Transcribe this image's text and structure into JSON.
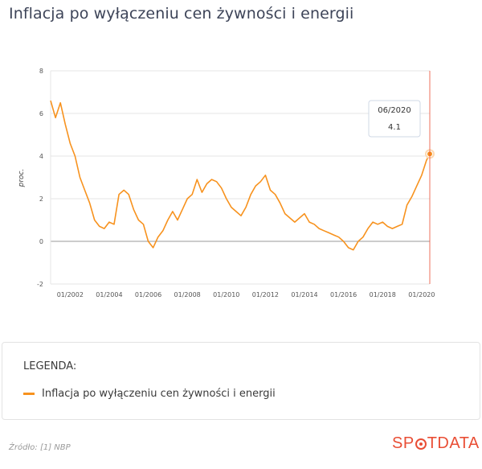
{
  "title": "Inflacja po wyłączeniu cen żywności i energii",
  "legend": {
    "title": "LEGENDA:",
    "items": [
      {
        "label": "Inflacja po wyłączeniu cen żywności i energii",
        "color": "#f7921e"
      }
    ]
  },
  "source": "Źródło: [1] NBP",
  "brand": {
    "left": "SP",
    "right": "TDATA",
    "color": "#e94e35"
  },
  "tooltip": {
    "date": "06/2020",
    "value": "4.1"
  },
  "chart_data": {
    "type": "line",
    "title": "Inflacja po wyłączeniu cen żywności i energii",
    "xlabel": "",
    "ylabel": "proc.",
    "ylim": [
      -2,
      8
    ],
    "yticks": [
      -2,
      0,
      2,
      4,
      6,
      8
    ],
    "xticks": [
      "01/2002",
      "01/2004",
      "01/2006",
      "01/2008",
      "01/2010",
      "01/2012",
      "01/2014",
      "01/2016",
      "01/2018",
      "01/2020"
    ],
    "grid": true,
    "legend_position": "bottom",
    "series": [
      {
        "name": "Inflacja po wyłączeniu cen żywności i energii",
        "color": "#f7921e",
        "x": [
          "01/2001",
          "04/2001",
          "07/2001",
          "10/2001",
          "01/2002",
          "04/2002",
          "07/2002",
          "10/2002",
          "01/2003",
          "04/2003",
          "07/2003",
          "10/2003",
          "01/2004",
          "04/2004",
          "07/2004",
          "10/2004",
          "01/2005",
          "04/2005",
          "07/2005",
          "10/2005",
          "01/2006",
          "04/2006",
          "07/2006",
          "10/2006",
          "01/2007",
          "04/2007",
          "07/2007",
          "10/2007",
          "01/2008",
          "04/2008",
          "07/2008",
          "10/2008",
          "01/2009",
          "04/2009",
          "07/2009",
          "10/2009",
          "01/2010",
          "04/2010",
          "07/2010",
          "10/2010",
          "01/2011",
          "04/2011",
          "07/2011",
          "10/2011",
          "01/2012",
          "04/2012",
          "07/2012",
          "10/2012",
          "01/2013",
          "04/2013",
          "07/2013",
          "10/2013",
          "01/2014",
          "04/2014",
          "07/2014",
          "10/2014",
          "01/2015",
          "04/2015",
          "07/2015",
          "10/2015",
          "01/2016",
          "04/2016",
          "07/2016",
          "10/2016",
          "01/2017",
          "04/2017",
          "07/2017",
          "10/2017",
          "01/2018",
          "04/2018",
          "07/2018",
          "10/2018",
          "01/2019",
          "04/2019",
          "07/2019",
          "10/2019",
          "01/2020",
          "04/2020",
          "06/2020"
        ],
        "values": [
          6.6,
          5.8,
          6.5,
          5.5,
          4.6,
          4.0,
          3.0,
          2.4,
          1.8,
          1.0,
          0.7,
          0.6,
          0.9,
          0.8,
          2.2,
          2.4,
          2.2,
          1.5,
          1.0,
          0.8,
          0.0,
          -0.3,
          0.2,
          0.5,
          1.0,
          1.4,
          1.0,
          1.5,
          2.0,
          2.2,
          2.9,
          2.3,
          2.7,
          2.9,
          2.8,
          2.5,
          2.0,
          1.6,
          1.4,
          1.2,
          1.6,
          2.2,
          2.6,
          2.8,
          3.1,
          2.4,
          2.2,
          1.8,
          1.3,
          1.1,
          0.9,
          1.1,
          1.3,
          0.9,
          0.8,
          0.6,
          0.5,
          0.4,
          0.3,
          0.2,
          0.0,
          -0.3,
          -0.4,
          0.0,
          0.2,
          0.6,
          0.9,
          0.8,
          0.9,
          0.7,
          0.6,
          0.7,
          0.8,
          1.7,
          2.1,
          2.6,
          3.1,
          3.8,
          4.1
        ]
      }
    ],
    "marker": {
      "x": "06/2020",
      "y": 4.1
    }
  }
}
